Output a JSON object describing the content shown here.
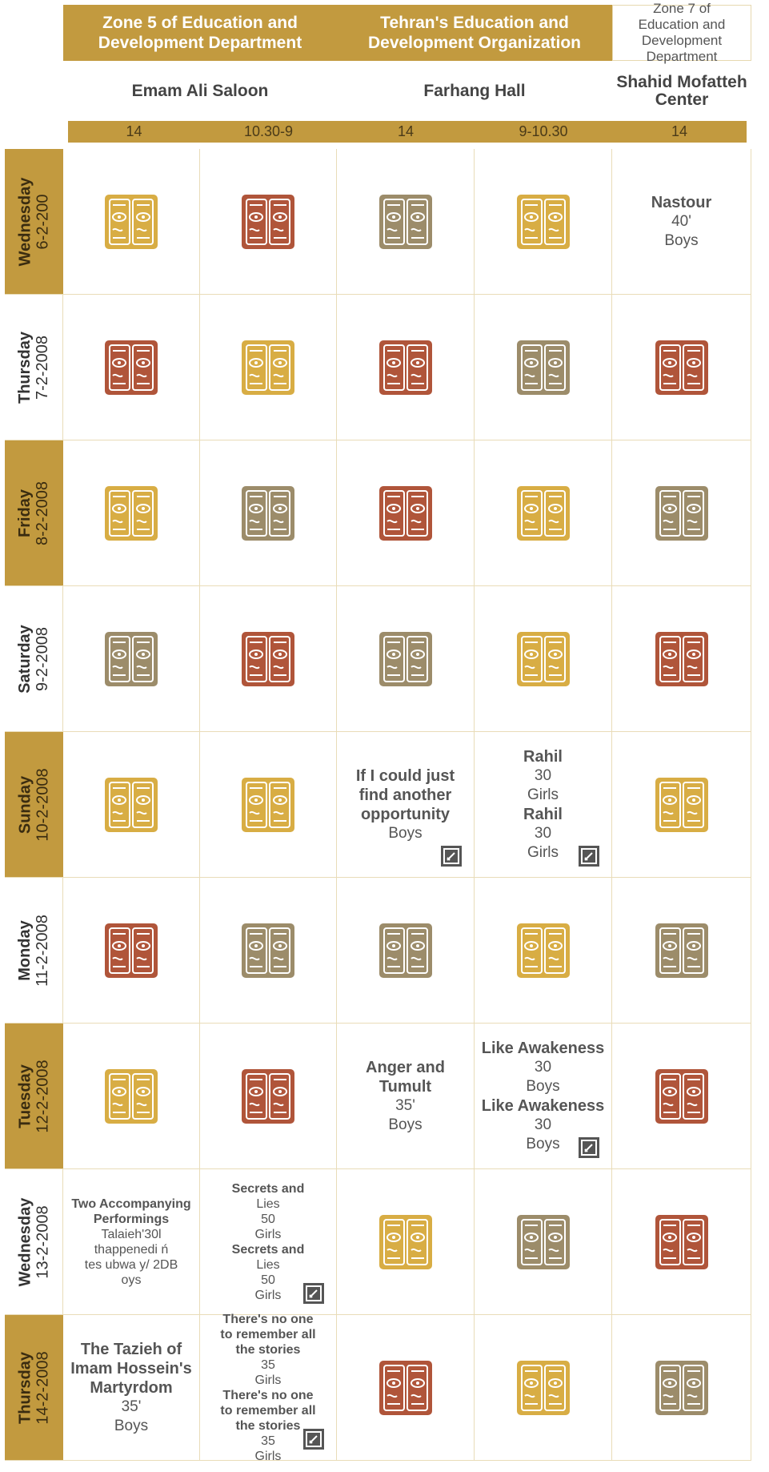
{
  "header": {
    "organizations": [
      "Zone 5 of Education and Development Department",
      "Tehran's Education and Development Organization",
      "Zone 7 of Education and Development Department"
    ],
    "venues": [
      "Emam Ali Saloon",
      "Farhang Hall",
      "Shahid Mofatteh Center"
    ],
    "times": [
      "14",
      "10.30-9",
      "14",
      "9-10.30",
      "14"
    ]
  },
  "days": [
    {
      "day": "Wednesday",
      "date": "6-2-200",
      "cells": [
        {
          "icon": "gold"
        },
        {
          "icon": "red"
        },
        {
          "icon": "gray"
        },
        {
          "icon": "gold"
        },
        {
          "lines": [
            {
              "text": "Nastour",
              "bold": true
            },
            {
              "text": "40'"
            },
            {
              "text": "Boys"
            }
          ]
        }
      ]
    },
    {
      "day": "Thursday",
      "date": "7-2-2008",
      "cells": [
        {
          "icon": "red"
        },
        {
          "icon": "gold"
        },
        {
          "icon": "red"
        },
        {
          "icon": "gray"
        },
        {
          "icon": "red"
        }
      ]
    },
    {
      "day": "Friday",
      "date": "8-2-2008",
      "cells": [
        {
          "icon": "gold"
        },
        {
          "icon": "gray"
        },
        {
          "icon": "red"
        },
        {
          "icon": "gold"
        },
        {
          "icon": "gray"
        }
      ]
    },
    {
      "day": "Saturday",
      "date": "9-2-2008",
      "cells": [
        {
          "icon": "gray"
        },
        {
          "icon": "red"
        },
        {
          "icon": "gray"
        },
        {
          "icon": "gold"
        },
        {
          "icon": "red"
        }
      ]
    },
    {
      "day": "Sunday",
      "date": "10-2-2008",
      "cells": [
        {
          "icon": "gold"
        },
        {
          "icon": "gold"
        },
        {
          "lines": [
            {
              "text": "If I could just",
              "bold": true
            },
            {
              "text": "find another",
              "bold": true
            },
            {
              "text": "opportunity",
              "bold": true
            },
            {
              "text": "Boys"
            }
          ],
          "edit": true
        },
        {
          "lines": [
            {
              "text": "Rahil",
              "bold": true
            },
            {
              "text": "30"
            },
            {
              "text": "Girls"
            },
            {
              "text": "Rahil",
              "bold": true
            },
            {
              "text": "30"
            },
            {
              "text": "Girls"
            }
          ],
          "edit": true
        },
        {
          "icon": "gold"
        }
      ]
    },
    {
      "day": "Monday",
      "date": "11-2-2008",
      "cells": [
        {
          "icon": "red"
        },
        {
          "icon": "gray"
        },
        {
          "icon": "gray"
        },
        {
          "icon": "gold"
        },
        {
          "icon": "gray"
        }
      ]
    },
    {
      "day": "Tuesday",
      "date": "12-2-2008",
      "cells": [
        {
          "icon": "gold"
        },
        {
          "icon": "red"
        },
        {
          "lines": [
            {
              "text": "Anger and",
              "bold": true
            },
            {
              "text": "Tumult",
              "bold": true
            },
            {
              "text": "35'"
            },
            {
              "text": "Boys"
            }
          ]
        },
        {
          "lines": [
            {
              "text": "Like Awakeness",
              "bold": true
            },
            {
              "text": "30"
            },
            {
              "text": "Boys"
            },
            {
              "text": "Like Awakeness",
              "bold": true
            },
            {
              "text": "30"
            },
            {
              "text": "Boys"
            }
          ],
          "edit": true
        },
        {
          "icon": "red"
        }
      ]
    },
    {
      "day": "Wednesday",
      "date": "13-2-2008",
      "cells": [
        {
          "lines": [
            {
              "text": "Two Accompanying",
              "bold": true
            },
            {
              "text": "Performings",
              "bold": true
            },
            {
              "text": "Talaieh'30l"
            },
            {
              "text": "thappenedi ń"
            },
            {
              "text": "tes ubwa y/ 2DB"
            },
            {
              "text": "oys"
            }
          ],
          "small": true
        },
        {
          "lines": [
            {
              "text": "Secrets and",
              "bold": true
            },
            {
              "text": "Lies"
            },
            {
              "text": "50"
            },
            {
              "text": "Girls"
            },
            {
              "text": "Secrets and",
              "bold": true
            },
            {
              "text": "Lies"
            },
            {
              "text": "50"
            },
            {
              "text": "Girls"
            }
          ],
          "edit": true,
          "small": true
        },
        {
          "icon": "gold"
        },
        {
          "icon": "gray"
        },
        {
          "icon": "red"
        }
      ]
    },
    {
      "day": "Thursday",
      "date": "14-2-2008",
      "cells": [
        {
          "lines": [
            {
              "text": "The Tazieh of",
              "bold": true
            },
            {
              "text": "Imam Hossein's",
              "bold": true
            },
            {
              "text": "Martyrdom",
              "bold": true
            },
            {
              "text": "35'"
            },
            {
              "text": "Boys"
            }
          ]
        },
        {
          "lines": [
            {
              "text": "There's no one",
              "bold": true
            },
            {
              "text": "to remember all",
              "bold": true
            },
            {
              "text": "the stories",
              "bold": true
            },
            {
              "text": "35"
            },
            {
              "text": "Girls"
            },
            {
              "text": "There's no one",
              "bold": true
            },
            {
              "text": "to remember all",
              "bold": true
            },
            {
              "text": "the stories",
              "bold": true
            },
            {
              "text": "35"
            },
            {
              "text": "Girls"
            }
          ],
          "edit": true,
          "small": true
        },
        {
          "icon": "red"
        },
        {
          "icon": "gold"
        },
        {
          "icon": "gray"
        }
      ]
    }
  ]
}
